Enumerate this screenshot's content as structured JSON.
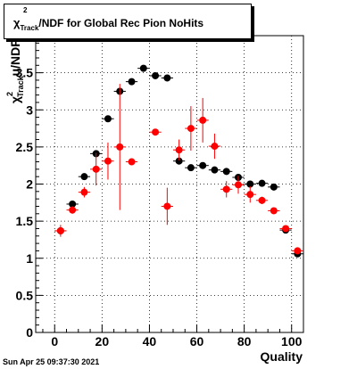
{
  "title": {
    "symbol": "χ",
    "superscript": "2",
    "subscript": "Track",
    "rest": "/NDF for Global Rec Pion NoHits"
  },
  "footer": "Sun Apr 25 09:37:30 2021",
  "chart_data": {
    "type": "scatter",
    "xlabel": "Quality",
    "ylabel": {
      "symbol": "χ",
      "superscript": "2",
      "subscript": "Track",
      "rest": "u/NDF"
    },
    "xlim": [
      -8,
      105
    ],
    "ylim": [
      0,
      4
    ],
    "x_ticks": [
      "0",
      "20",
      "40",
      "60",
      "80",
      "100"
    ],
    "y_ticks": [
      "0",
      "0.5",
      "1",
      "1.5",
      "2",
      "2.5",
      "3",
      "3.5"
    ],
    "grid": true,
    "series": [
      {
        "color": "#000000",
        "points": [
          {
            "x": 2.5,
            "y": 1.37,
            "err": 0.04
          },
          {
            "x": 7.5,
            "y": 1.73,
            "err": 0.04
          },
          {
            "x": 12.5,
            "y": 2.1,
            "err": 0.04
          },
          {
            "x": 17.5,
            "y": 2.41,
            "err": 0.04
          },
          {
            "x": 22.5,
            "y": 2.88,
            "err": 0.04
          },
          {
            "x": 27.5,
            "y": 3.25,
            "err": 0.04
          },
          {
            "x": 32.5,
            "y": 3.38,
            "err": 0.04
          },
          {
            "x": 37.5,
            "y": 3.56,
            "err": 0.04
          },
          {
            "x": 42.5,
            "y": 3.46,
            "err": 0.04
          },
          {
            "x": 47.5,
            "y": 3.43,
            "err": 0.04
          },
          {
            "x": 52.5,
            "y": 2.31,
            "err": 0.04
          },
          {
            "x": 57.5,
            "y": 2.22,
            "err": 0.03
          },
          {
            "x": 62.5,
            "y": 2.25,
            "err": 0.03
          },
          {
            "x": 67.5,
            "y": 2.19,
            "err": 0.03
          },
          {
            "x": 72.5,
            "y": 2.17,
            "err": 0.03
          },
          {
            "x": 77.5,
            "y": 2.09,
            "err": 0.03
          },
          {
            "x": 82.5,
            "y": 2.0,
            "err": 0.03
          },
          {
            "x": 87.5,
            "y": 2.01,
            "err": 0.03
          },
          {
            "x": 92.5,
            "y": 1.96,
            "err": 0.03
          },
          {
            "x": 97.5,
            "y": 1.38,
            "err": 0.03
          },
          {
            "x": 102.5,
            "y": 1.06,
            "err": 0.03
          }
        ]
      },
      {
        "color": "#ff0000",
        "points": [
          {
            "x": 2.5,
            "y": 1.37,
            "err": 0.08
          },
          {
            "x": 7.5,
            "y": 1.65,
            "err": 0.05
          },
          {
            "x": 12.5,
            "y": 1.89,
            "err": 0.07
          },
          {
            "x": 17.5,
            "y": 2.2,
            "err": 0.22
          },
          {
            "x": 22.5,
            "y": 2.31,
            "err": 0.25
          },
          {
            "x": 27.5,
            "y": 2.5,
            "err": 0.85
          },
          {
            "x": 32.5,
            "y": 2.3,
            "err": 0.04
          },
          {
            "x": 42.5,
            "y": 2.7,
            "err": 0.04
          },
          {
            "x": 47.5,
            "y": 1.7,
            "err": 0.25
          },
          {
            "x": 52.5,
            "y": 2.46,
            "err": 0.14
          },
          {
            "x": 57.5,
            "y": 2.75,
            "err": 0.3
          },
          {
            "x": 62.5,
            "y": 2.86,
            "err": 0.3
          },
          {
            "x": 67.5,
            "y": 2.51,
            "err": 0.17
          },
          {
            "x": 72.5,
            "y": 1.93,
            "err": 0.11
          },
          {
            "x": 77.5,
            "y": 1.99,
            "err": 0.12
          },
          {
            "x": 82.5,
            "y": 1.86,
            "err": 0.11
          },
          {
            "x": 87.5,
            "y": 1.78,
            "err": 0.05
          },
          {
            "x": 92.5,
            "y": 1.64,
            "err": 0.04
          },
          {
            "x": 97.5,
            "y": 1.4,
            "err": 0.04
          },
          {
            "x": 102.5,
            "y": 1.1,
            "err": 0.04
          }
        ]
      }
    ]
  }
}
